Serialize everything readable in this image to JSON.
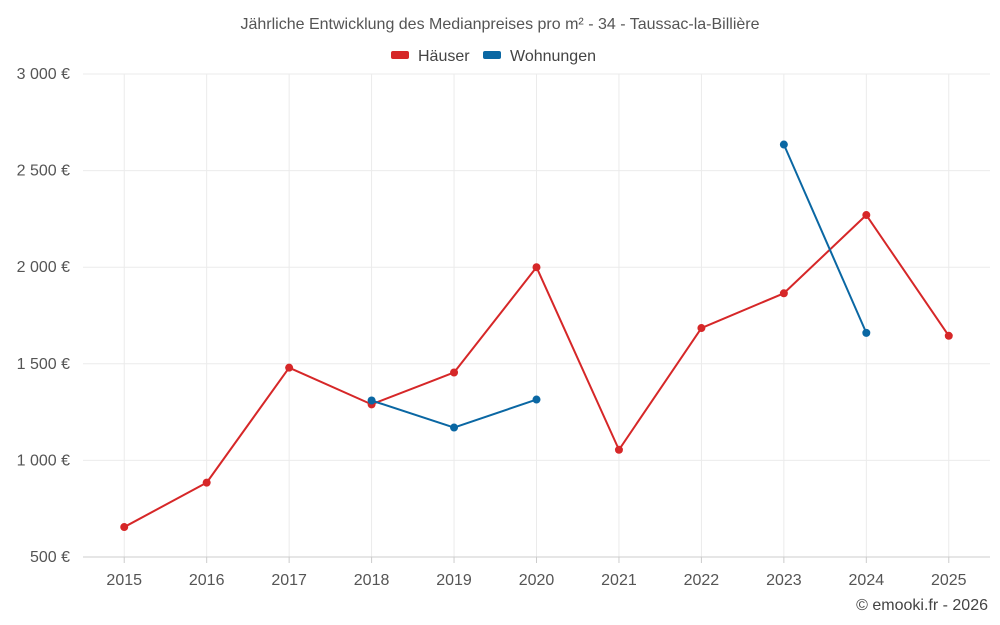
{
  "chart_data": {
    "type": "line",
    "title": "Jährliche Entwicklung des Medianpreises pro m² - 34 - Taussac-la-Billière",
    "categories": [
      "2015",
      "2016",
      "2017",
      "2018",
      "2019",
      "2020",
      "2021",
      "2022",
      "2023",
      "2024",
      "2025"
    ],
    "y_tick_values": [
      500,
      1000,
      1500,
      2000,
      2500,
      3000
    ],
    "y_tick_labels": [
      "500 €",
      "1 000 €",
      "1 500 €",
      "2 000 €",
      "2 500 €",
      "3 000 €"
    ],
    "ylim": [
      500,
      3000
    ],
    "grid": true,
    "legend_position": "top-center",
    "series": [
      {
        "name": "Häuser",
        "color": "#d62728",
        "values": [
          655,
          885,
          1480,
          1290,
          1455,
          2000,
          1055,
          1685,
          1865,
          2270,
          1645
        ]
      },
      {
        "name": "Wohnungen",
        "color": "#0a67a3",
        "values": [
          null,
          null,
          null,
          1310,
          1170,
          1315,
          null,
          null,
          2635,
          1660,
          null
        ]
      }
    ]
  },
  "credit": "© emooki.fr - 2026"
}
